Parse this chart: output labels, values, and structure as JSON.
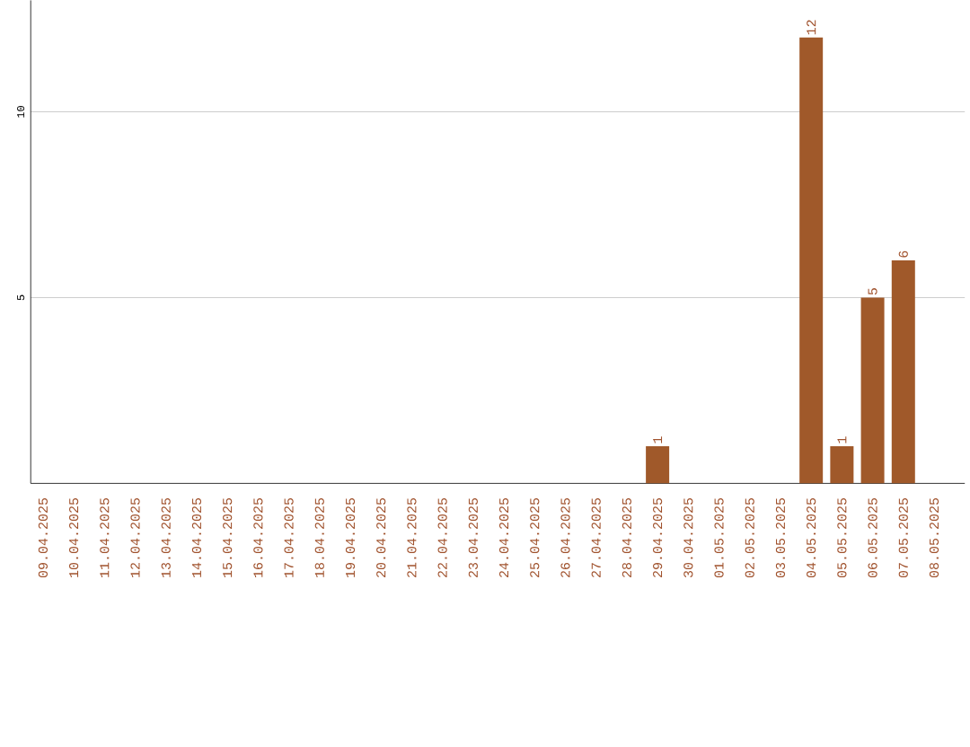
{
  "chart_data": {
    "type": "bar",
    "categories": [
      "09.04.2025",
      "10.04.2025",
      "11.04.2025",
      "12.04.2025",
      "13.04.2025",
      "14.04.2025",
      "15.04.2025",
      "16.04.2025",
      "17.04.2025",
      "18.04.2025",
      "19.04.2025",
      "20.04.2025",
      "21.04.2025",
      "22.04.2025",
      "23.04.2025",
      "24.04.2025",
      "25.04.2025",
      "26.04.2025",
      "27.04.2025",
      "28.04.2025",
      "29.04.2025",
      "30.04.2025",
      "01.05.2025",
      "02.05.2025",
      "03.05.2025",
      "04.05.2025",
      "05.05.2025",
      "06.05.2025",
      "07.05.2025",
      "08.05.2025"
    ],
    "values": [
      0,
      0,
      0,
      0,
      0,
      0,
      0,
      0,
      0,
      0,
      0,
      0,
      0,
      0,
      0,
      0,
      0,
      0,
      0,
      0,
      1,
      0,
      0,
      0,
      0,
      12,
      1,
      5,
      6,
      0
    ],
    "value_labels": [
      null,
      null,
      null,
      null,
      null,
      null,
      null,
      null,
      null,
      null,
      null,
      null,
      null,
      null,
      null,
      null,
      null,
      null,
      null,
      null,
      "1",
      null,
      null,
      null,
      null,
      "12",
      "1",
      "5",
      "6",
      null
    ],
    "color": "#a0592a",
    "ylim": [
      0,
      13
    ],
    "yticks": [
      5,
      10
    ],
    "grid": "y"
  }
}
